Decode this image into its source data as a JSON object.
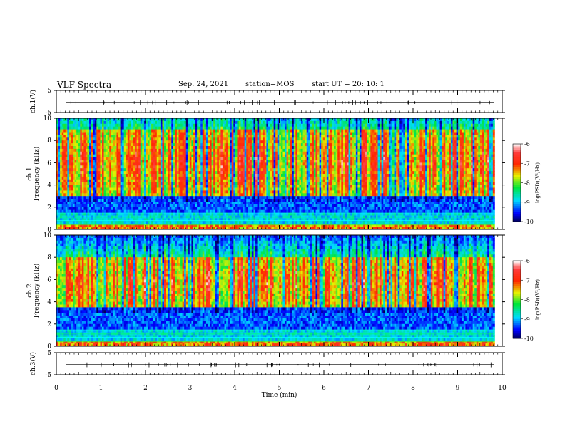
{
  "header": {
    "title": "VLF Spectra",
    "date": "Sep. 24, 2021",
    "station": "station=MOS",
    "start_ut": "start  UT  =   20: 10: 1"
  },
  "chart_data": [
    {
      "type": "line",
      "name": "ch1-waveform",
      "ylabel": "ch.1(V)",
      "ylim": [
        -5,
        5
      ],
      "yticks": [
        "5",
        "-5"
      ],
      "xlim": [
        0,
        10
      ],
      "level": -0.5
    },
    {
      "type": "heatmap",
      "name": "ch1-spectrogram",
      "ylabel": "ch.1\nFrequency (kHz)",
      "ylim": [
        0,
        10
      ],
      "yticks": [
        "0",
        "2",
        "4",
        "6",
        "8",
        "10"
      ],
      "xlim": [
        0,
        10
      ],
      "data_end_min": 9.83,
      "intensity_band_khz": [
        3,
        9
      ],
      "colorbar": {
        "label": "log(PSD)(V²/Hz)",
        "range": [
          -10,
          -6
        ],
        "ticks": [
          "-6",
          "-7",
          "-8",
          "-9",
          "-10"
        ]
      }
    },
    {
      "type": "heatmap",
      "name": "ch2-spectrogram",
      "ylabel": "ch.2\nFrequency (kHz)",
      "ylim": [
        0,
        10
      ],
      "yticks": [
        "0",
        "2",
        "4",
        "6",
        "8",
        "10"
      ],
      "xlim": [
        0,
        10
      ],
      "data_end_min": 9.83,
      "intensity_band_khz": [
        3.5,
        8
      ],
      "colorbar": {
        "label": "log(PSD)(V²/Hz)",
        "range": [
          -10,
          -6
        ],
        "ticks": [
          "-6",
          "-7",
          "-8",
          "-9",
          "-10"
        ]
      }
    },
    {
      "type": "line",
      "name": "ch3-waveform",
      "ylabel": "ch.3(V)",
      "ylim": [
        -5,
        5
      ],
      "yticks": [
        "5",
        "-5"
      ],
      "xlim": [
        0,
        10
      ],
      "level": -0.5
    }
  ],
  "xaxis": {
    "label": "Time  (min)",
    "ticks": [
      "0",
      "1",
      "2",
      "3",
      "4",
      "5",
      "6",
      "7",
      "8",
      "9",
      "10"
    ]
  },
  "colors": {
    "scale": [
      "#ffffff",
      "#ff0000",
      "#ffff00",
      "#00ff00",
      "#00ffff",
      "#0000ff",
      "#000050"
    ]
  }
}
